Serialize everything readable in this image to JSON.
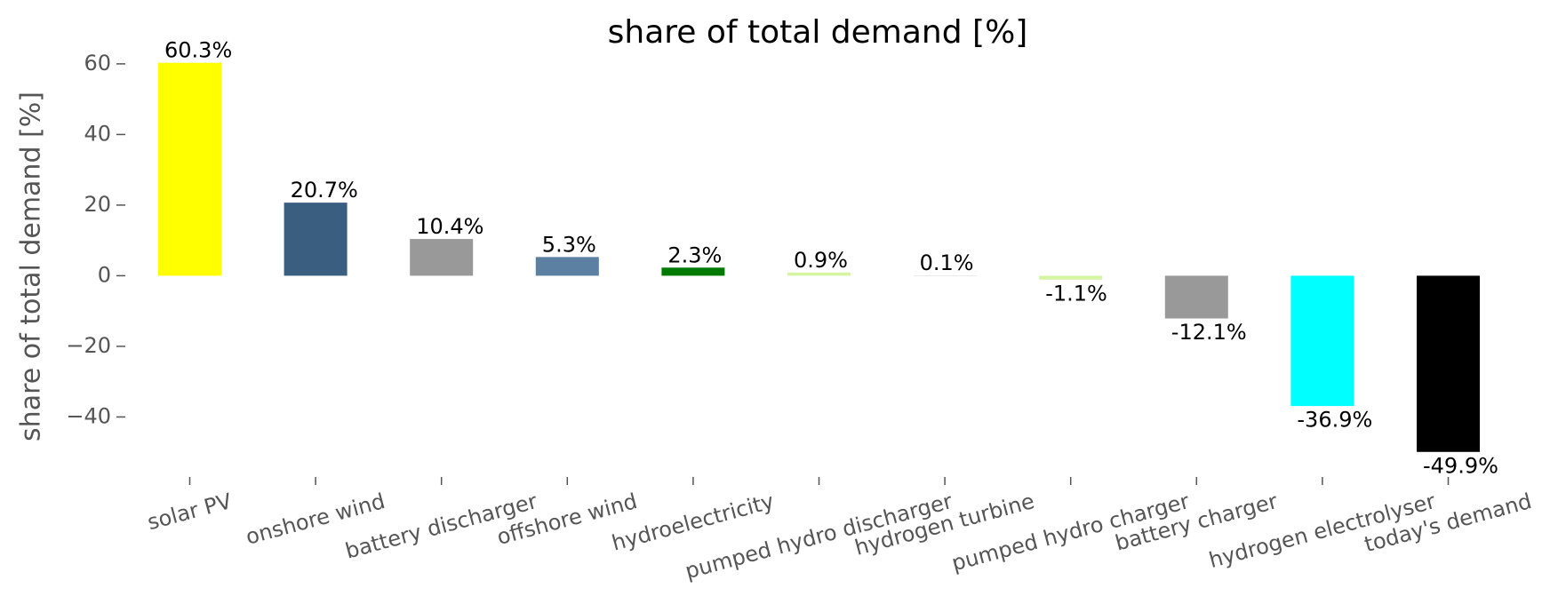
{
  "chart_data": {
    "type": "bar",
    "title": "share of total demand [%]",
    "ylabel": "share of total demand [%]",
    "categories": [
      "solar PV",
      "onshore wind",
      "battery discharger",
      "offshore wind",
      "hydroelectricity",
      "pumped hydro discharger",
      "hydrogen turbine",
      "pumped hydro charger",
      "battery charger",
      "hydrogen electrolyser",
      "today's demand"
    ],
    "values": [
      60.3,
      20.7,
      10.4,
      5.3,
      2.3,
      0.9,
      0.1,
      -1.1,
      -12.1,
      -36.9,
      -49.9
    ],
    "value_labels": [
      "60.3%",
      "20.7%",
      "10.4%",
      "5.3%",
      "2.3%",
      "0.9%",
      "0.1%",
      "-1.1%",
      "-12.1%",
      "-36.9%",
      "-49.9%"
    ],
    "colors": [
      "#ffff00",
      "#3a5e80",
      "#999999",
      "#5b80a2",
      "#007a00",
      "#d6f5a3",
      "#cccccc",
      "#d6f5a3",
      "#999999",
      "#00ffff",
      "#000000"
    ],
    "ylim": [
      -57,
      64
    ],
    "yticks": [
      {
        "value": -40,
        "label": "−40"
      },
      {
        "value": -20,
        "label": "−20"
      },
      0,
      20,
      40,
      60
    ],
    "grid": false
  }
}
